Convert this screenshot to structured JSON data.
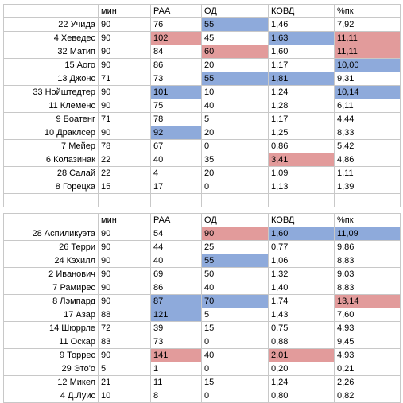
{
  "colors": {
    "blue": "#8eaadb",
    "red": "#e29b9b"
  },
  "tables": [
    {
      "headers": [
        "",
        "мин",
        "РАА",
        "ОД",
        "КОВД",
        "%пк"
      ],
      "rows": [
        {
          "cells": [
            "22 Учида",
            "90",
            "76",
            "55",
            "1,46",
            "7,92"
          ],
          "highlight": [
            "",
            "",
            "",
            "blue",
            "",
            ""
          ]
        },
        {
          "cells": [
            "4 Хеведес",
            "90",
            "102",
            "45",
            "1,63",
            "11,11"
          ],
          "highlight": [
            "",
            "",
            "red",
            "",
            "blue",
            "red"
          ]
        },
        {
          "cells": [
            "32 Матип",
            "90",
            "84",
            "60",
            "1,60",
            "11,11"
          ],
          "highlight": [
            "",
            "",
            "",
            "red",
            "",
            "red"
          ]
        },
        {
          "cells": [
            "15 Аого",
            "90",
            "86",
            "20",
            "1,17",
            "10,00"
          ],
          "highlight": [
            "",
            "",
            "",
            "",
            "",
            "blue"
          ]
        },
        {
          "cells": [
            "13 Джонс",
            "71",
            "73",
            "55",
            "1,81",
            "9,31"
          ],
          "highlight": [
            "",
            "",
            "",
            "blue",
            "blue",
            ""
          ]
        },
        {
          "cells": [
            "33 Нойштедтер",
            "90",
            "101",
            "10",
            "1,24",
            "10,14"
          ],
          "highlight": [
            "",
            "",
            "blue",
            "",
            "",
            "blue"
          ]
        },
        {
          "cells": [
            "11 Клеменс",
            "90",
            "75",
            "40",
            "1,28",
            "6,11"
          ],
          "highlight": [
            "",
            "",
            "",
            "",
            "",
            ""
          ]
        },
        {
          "cells": [
            "9 Боатенг",
            "71",
            "78",
            "5",
            "1,17",
            "4,44"
          ],
          "highlight": [
            "",
            "",
            "",
            "",
            "",
            ""
          ]
        },
        {
          "cells": [
            "10 Драклсер",
            "90",
            "92",
            "20",
            "1,25",
            "8,33"
          ],
          "highlight": [
            "",
            "",
            "blue",
            "",
            "",
            ""
          ]
        },
        {
          "cells": [
            "7 Мейер",
            "78",
            "67",
            "0",
            "0,86",
            "5,42"
          ],
          "highlight": [
            "",
            "",
            "",
            "",
            "",
            ""
          ]
        },
        {
          "cells": [
            "6 Колазинак",
            "22",
            "40",
            "35",
            "3,41",
            "4,86"
          ],
          "highlight": [
            "",
            "",
            "",
            "",
            "red",
            ""
          ]
        },
        {
          "cells": [
            "28 Салай",
            "22",
            "4",
            "20",
            "1,09",
            "1,11"
          ],
          "highlight": [
            "",
            "",
            "",
            "",
            "",
            ""
          ]
        },
        {
          "cells": [
            "8 Горецка",
            "15",
            "17",
            "0",
            "1,13",
            "1,39"
          ],
          "highlight": [
            "",
            "",
            "",
            "",
            "",
            ""
          ]
        },
        {
          "cells": [
            "",
            "",
            "",
            "",
            "",
            ""
          ],
          "highlight": [
            "",
            "",
            "",
            "",
            "",
            ""
          ]
        }
      ]
    },
    {
      "headers": [
        "",
        "мин",
        "РАА",
        "ОД",
        "КОВД",
        "%пк"
      ],
      "rows": [
        {
          "cells": [
            "28 Аспиликуэта",
            "90",
            "54",
            "90",
            "1,60",
            "11,09"
          ],
          "highlight": [
            "",
            "",
            "",
            "red",
            "blue",
            "blue"
          ]
        },
        {
          "cells": [
            "26 Терри",
            "90",
            "44",
            "25",
            "0,77",
            "9,86"
          ],
          "highlight": [
            "",
            "",
            "",
            "",
            "",
            ""
          ]
        },
        {
          "cells": [
            "24 Кэхилл",
            "90",
            "40",
            "55",
            "1,06",
            "8,83"
          ],
          "highlight": [
            "",
            "",
            "",
            "blue",
            "",
            ""
          ]
        },
        {
          "cells": [
            "2 Иванович",
            "90",
            "69",
            "50",
            "1,32",
            "9,03"
          ],
          "highlight": [
            "",
            "",
            "",
            "",
            "",
            ""
          ]
        },
        {
          "cells": [
            "7 Рамирес",
            "90",
            "86",
            "40",
            "1,40",
            "8,83"
          ],
          "highlight": [
            "",
            "",
            "",
            "",
            "",
            ""
          ]
        },
        {
          "cells": [
            "8 Лэмпард",
            "90",
            "87",
            "70",
            "1,74",
            "13,14"
          ],
          "highlight": [
            "",
            "",
            "blue",
            "blue",
            "",
            "red"
          ]
        },
        {
          "cells": [
            "17 Азар",
            "88",
            "121",
            "5",
            "1,43",
            "7,60"
          ],
          "highlight": [
            "",
            "",
            "blue",
            "",
            "",
            ""
          ]
        },
        {
          "cells": [
            "14 Шюррле",
            "72",
            "39",
            "15",
            "0,75",
            "4,93"
          ],
          "highlight": [
            "",
            "",
            "",
            "",
            "",
            ""
          ]
        },
        {
          "cells": [
            "11 Оскар",
            "83",
            "73",
            "0",
            "0,88",
            "9,45"
          ],
          "highlight": [
            "",
            "",
            "",
            "",
            "",
            ""
          ]
        },
        {
          "cells": [
            "9 Торрес",
            "90",
            "141",
            "40",
            "2,01",
            "4,93"
          ],
          "highlight": [
            "",
            "",
            "red",
            "",
            "red",
            ""
          ]
        },
        {
          "cells": [
            "29 Это'о",
            "5",
            "1",
            "0",
            "0,20",
            "0,21"
          ],
          "highlight": [
            "",
            "",
            "",
            "",
            "",
            ""
          ]
        },
        {
          "cells": [
            "12 Микел",
            "21",
            "11",
            "15",
            "1,24",
            "2,26"
          ],
          "highlight": [
            "",
            "",
            "",
            "",
            "",
            ""
          ]
        },
        {
          "cells": [
            "4 Д.Луис",
            "10",
            "8",
            "0",
            "0,80",
            "0,82"
          ],
          "highlight": [
            "",
            "",
            "",
            "",
            "",
            ""
          ]
        }
      ]
    }
  ]
}
